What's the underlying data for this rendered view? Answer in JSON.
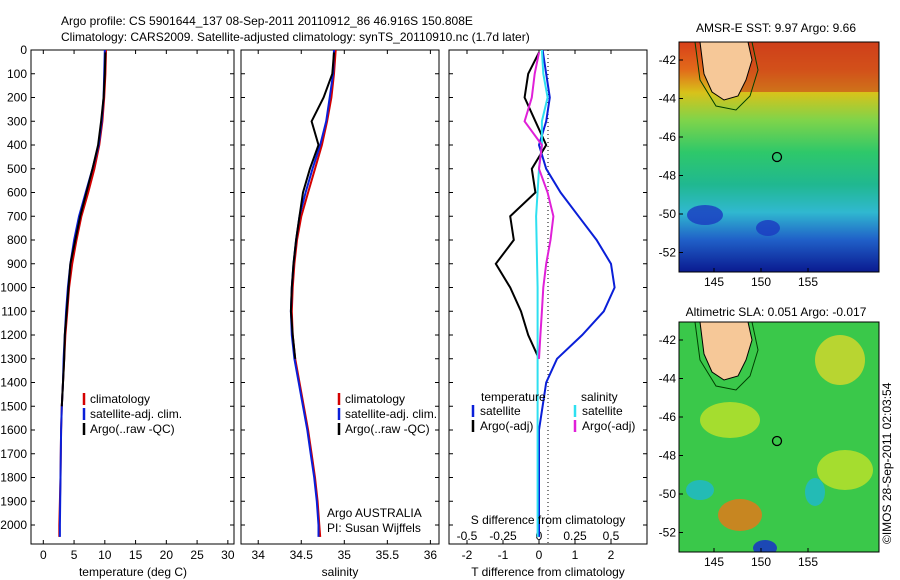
{
  "title_line1": "Argo profile: CS 5901644_137 08-Sep-2011 20110912_86 46.916S 150.808E",
  "title_line2": "Climatology: CARS2009. Satellite-adjusted climatology: synTS_20110910.nc (1.7d later)",
  "colors": {
    "climatology": "#d40000",
    "satellite": "#0a1fd8",
    "argo": "#000000",
    "sat_salinity": "#2ee0f0",
    "argo_salinity": "#e020d8"
  },
  "chart_data": [
    {
      "type": "line",
      "panel": "temperature",
      "xlabel": "temperature (deg C)",
      "ylabel": "",
      "xlim": [
        -2,
        31
      ],
      "ylim": [
        0,
        2080
      ],
      "y_reversed": true,
      "xticks": [
        0,
        5,
        10,
        15,
        20,
        25,
        30
      ],
      "yticks": [
        0,
        100,
        200,
        300,
        400,
        500,
        600,
        700,
        800,
        900,
        1000,
        1100,
        1200,
        1300,
        1400,
        1500,
        1600,
        1700,
        1800,
        1900,
        2000
      ],
      "legend": [
        "climatology",
        "satellite-adj. clim.",
        "Argo(..raw -QC)"
      ],
      "legend_position": "center-right",
      "series": [
        {
          "name": "climatology",
          "color": "#d40000",
          "points": [
            [
              10.2,
              0
            ],
            [
              10.1,
              100
            ],
            [
              9.9,
              200
            ],
            [
              9.6,
              300
            ],
            [
              9.1,
              400
            ],
            [
              8.3,
              500
            ],
            [
              7.3,
              600
            ],
            [
              6.2,
              700
            ],
            [
              5.4,
              800
            ],
            [
              4.7,
              900
            ],
            [
              4.2,
              1000
            ],
            [
              3.9,
              1100
            ],
            [
              3.6,
              1200
            ],
            [
              3.4,
              1300
            ],
            [
              3.2,
              1400
            ],
            [
              3.0,
              1500
            ],
            [
              2.9,
              1600
            ],
            [
              2.8,
              1800
            ],
            [
              2.6,
              2000
            ],
            [
              2.6,
              2050
            ]
          ]
        },
        {
          "name": "satellite-adj. clim.",
          "color": "#0a1fd8",
          "points": [
            [
              10.0,
              0
            ],
            [
              9.9,
              100
            ],
            [
              9.8,
              200
            ],
            [
              9.5,
              300
            ],
            [
              9.0,
              400
            ],
            [
              8.0,
              500
            ],
            [
              6.9,
              600
            ],
            [
              5.8,
              700
            ],
            [
              5.0,
              800
            ],
            [
              4.4,
              900
            ],
            [
              4.0,
              1000
            ],
            [
              3.7,
              1100
            ],
            [
              3.5,
              1200
            ],
            [
              3.3,
              1300
            ],
            [
              3.2,
              1400
            ],
            [
              3.0,
              1500
            ],
            [
              2.9,
              1600
            ],
            [
              2.8,
              1800
            ],
            [
              2.7,
              2000
            ],
            [
              2.7,
              2050
            ]
          ]
        },
        {
          "name": "Argo(..raw -QC)",
          "color": "#000000",
          "points": [
            [
              10.1,
              10
            ],
            [
              10.0,
              100
            ],
            [
              9.8,
              200
            ],
            [
              9.4,
              300
            ],
            [
              8.9,
              400
            ],
            [
              8.0,
              500
            ],
            [
              7.0,
              600
            ],
            [
              6.0,
              700
            ],
            [
              5.2,
              800
            ],
            [
              4.4,
              900
            ],
            [
              4.1,
              1000
            ],
            [
              3.8,
              1100
            ],
            [
              3.5,
              1200
            ],
            [
              3.4,
              1300
            ],
            [
              3.2,
              1400
            ],
            [
              3.0,
              1500
            ]
          ]
        }
      ],
      "annotation": []
    },
    {
      "type": "line",
      "panel": "salinity",
      "xlabel": "salinity",
      "xlim": [
        33.8,
        36.1
      ],
      "ylim": [
        0,
        2080
      ],
      "y_reversed": true,
      "xticks": [
        34,
        34.5,
        35,
        35.5,
        36
      ],
      "xtick_labels": [
        "34",
        "34.5",
        "35",
        "35.5",
        "36"
      ],
      "legend": [
        "climatology",
        "satellite-adj. clim.",
        "Argo(..raw -QC)"
      ],
      "legend_position": "center-right",
      "series": [
        {
          "name": "climatology",
          "color": "#d40000",
          "points": [
            [
              34.9,
              0
            ],
            [
              34.88,
              100
            ],
            [
              34.85,
              200
            ],
            [
              34.8,
              300
            ],
            [
              34.74,
              400
            ],
            [
              34.66,
              500
            ],
            [
              34.58,
              600
            ],
            [
              34.5,
              700
            ],
            [
              34.45,
              800
            ],
            [
              34.42,
              900
            ],
            [
              34.4,
              1000
            ],
            [
              34.39,
              1100
            ],
            [
              34.4,
              1200
            ],
            [
              34.43,
              1300
            ],
            [
              34.48,
              1400
            ],
            [
              34.53,
              1500
            ],
            [
              34.58,
              1600
            ],
            [
              34.62,
              1700
            ],
            [
              34.66,
              1800
            ],
            [
              34.69,
              1900
            ],
            [
              34.71,
              2000
            ],
            [
              34.72,
              2050
            ]
          ]
        },
        {
          "name": "satellite-adj. clim.",
          "color": "#0a1fd8",
          "points": [
            [
              34.88,
              0
            ],
            [
              34.87,
              100
            ],
            [
              34.83,
              200
            ],
            [
              34.79,
              300
            ],
            [
              34.72,
              400
            ],
            [
              34.63,
              500
            ],
            [
              34.55,
              600
            ],
            [
              34.48,
              700
            ],
            [
              34.44,
              800
            ],
            [
              34.41,
              900
            ],
            [
              34.39,
              1000
            ],
            [
              34.38,
              1100
            ],
            [
              34.39,
              1200
            ],
            [
              34.42,
              1300
            ],
            [
              34.47,
              1400
            ],
            [
              34.52,
              1500
            ],
            [
              34.57,
              1600
            ],
            [
              34.61,
              1700
            ],
            [
              34.65,
              1800
            ],
            [
              34.68,
              1900
            ],
            [
              34.7,
              2000
            ],
            [
              34.7,
              2050
            ]
          ]
        },
        {
          "name": "Argo(..raw -QC)",
          "color": "#000000",
          "points": [
            [
              34.88,
              10
            ],
            [
              34.86,
              100
            ],
            [
              34.76,
              200
            ],
            [
              34.62,
              300
            ],
            [
              34.7,
              400
            ],
            [
              34.6,
              500
            ],
            [
              34.52,
              600
            ],
            [
              34.48,
              700
            ],
            [
              34.44,
              800
            ],
            [
              34.41,
              900
            ],
            [
              34.39,
              1000
            ],
            [
              34.38,
              1100
            ],
            [
              34.4,
              1200
            ],
            [
              34.43,
              1300
            ]
          ]
        }
      ],
      "annotation": [
        "Argo AUSTRALIA",
        "PI: Susan Wijffels"
      ]
    },
    {
      "type": "line",
      "panel": "difference",
      "xlabel": "T difference from climatology",
      "xlabel_top": "S difference from climatology",
      "xlim": [
        -2.5,
        3.0
      ],
      "ylim": [
        0,
        2080
      ],
      "y_reversed": true,
      "xticks": [
        -2,
        -1,
        0,
        1,
        2
      ],
      "top_tick_labels": [
        "-0.5",
        "-0.25",
        "0",
        "0.25",
        "0.5"
      ],
      "legend_temperature_title": "temperature",
      "legend_salinity_title": "salinity",
      "legend": [
        "satellite",
        "Argo(-adj)",
        "satellite",
        "Argo(-adj)"
      ],
      "legend_position": "center",
      "series": [
        {
          "name": "T satellite",
          "color": "#0a1fd8",
          "points": [
            [
              0.1,
              0
            ],
            [
              0.2,
              100
            ],
            [
              0.3,
              200
            ],
            [
              0.2,
              300
            ],
            [
              0.0,
              400
            ],
            [
              0.2,
              500
            ],
            [
              0.6,
              600
            ],
            [
              1.1,
              700
            ],
            [
              1.6,
              800
            ],
            [
              2.0,
              900
            ],
            [
              2.1,
              1000
            ],
            [
              1.8,
              1100
            ],
            [
              1.2,
              1200
            ],
            [
              0.5,
              1300
            ],
            [
              0.2,
              1400
            ],
            [
              0.1,
              1500
            ],
            [
              0.0,
              1600
            ],
            [
              0.0,
              2050
            ]
          ]
        },
        {
          "name": "T Argo(-adj)",
          "color": "#000000",
          "points": [
            [
              0.0,
              10
            ],
            [
              -0.3,
              100
            ],
            [
              -0.4,
              200
            ],
            [
              -0.1,
              300
            ],
            [
              0.2,
              400
            ],
            [
              -0.2,
              500
            ],
            [
              -0.1,
              600
            ],
            [
              -0.8,
              700
            ],
            [
              -0.7,
              800
            ],
            [
              -1.2,
              900
            ],
            [
              -0.8,
              1000
            ],
            [
              -0.5,
              1100
            ],
            [
              -0.3,
              1200
            ],
            [
              0.0,
              1300
            ]
          ]
        },
        {
          "name": "S satellite",
          "color": "#2ee0f0",
          "points": [
            [
              0.02,
              0
            ],
            [
              0.03,
              100
            ],
            [
              0.06,
              200
            ],
            [
              0.02,
              300
            ],
            [
              0.02,
              400
            ],
            [
              0.0,
              500
            ],
            [
              -0.02,
              700
            ],
            [
              -0.01,
              1000
            ],
            [
              -0.01,
              1500
            ],
            [
              -0.01,
              2050
            ]
          ]
        },
        {
          "name": "S Argo(-adj)",
          "color": "#e020d8",
          "points": [
            [
              0.0,
              10
            ],
            [
              -0.03,
              100
            ],
            [
              -0.05,
              200
            ],
            [
              -0.1,
              300
            ],
            [
              0.02,
              400
            ],
            [
              0.0,
              500
            ],
            [
              0.06,
              600
            ],
            [
              0.1,
              700
            ],
            [
              0.08,
              800
            ],
            [
              0.05,
              900
            ],
            [
              0.03,
              1000
            ],
            [
              0.02,
              1100
            ],
            [
              0.01,
              1200
            ],
            [
              0.0,
              1300
            ]
          ]
        }
      ],
      "annotation": []
    }
  ],
  "maps": [
    {
      "title": "AMSR-E SST: 9.97  Argo: 9.66",
      "xticks": [
        "145",
        "150",
        "155"
      ],
      "yticks": [
        "-42",
        "-44",
        "-46",
        "-48",
        "-50",
        "-52"
      ]
    },
    {
      "title": "Altimetric SLA: 0.051  Argo: -0.017",
      "xticks": [
        "145",
        "150",
        "155"
      ],
      "yticks": [
        "-42",
        "-44",
        "-46",
        "-48",
        "-50",
        "-52"
      ]
    }
  ],
  "stamp": "©IMOS 28-Sep-2011 02:03:54"
}
